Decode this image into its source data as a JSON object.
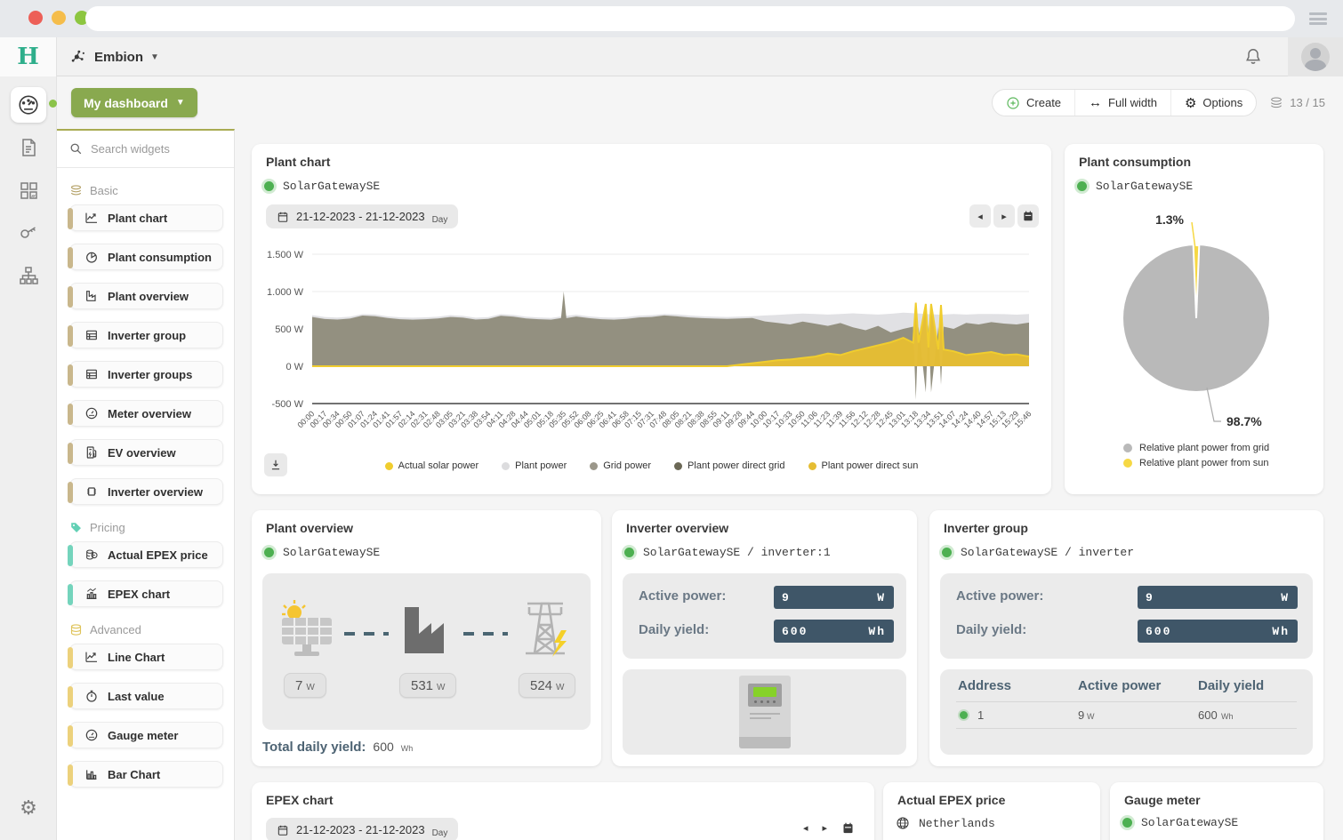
{
  "header": {
    "app_name": "Embion"
  },
  "toolbar": {
    "dashboard_button": "My dashboard",
    "create_label": "Create",
    "full_width_label": "Full width",
    "options_label": "Options",
    "widget_counter": "13 / 15"
  },
  "sidebar": {
    "search_placeholder": "Search widgets",
    "sections": [
      {
        "label": "Basic",
        "items": [
          {
            "label": "Plant chart"
          },
          {
            "label": "Plant consumption"
          },
          {
            "label": "Plant overview"
          },
          {
            "label": "Inverter group"
          },
          {
            "label": "Inverter groups"
          },
          {
            "label": "Meter overview"
          },
          {
            "label": "EV overview"
          },
          {
            "label": "Inverter overview"
          }
        ]
      },
      {
        "label": "Pricing",
        "items": [
          {
            "label": "Actual EPEX price"
          },
          {
            "label": "EPEX chart"
          }
        ]
      },
      {
        "label": "Advanced",
        "items": [
          {
            "label": "Line Chart"
          },
          {
            "label": "Last value"
          },
          {
            "label": "Gauge meter"
          },
          {
            "label": "Bar Chart"
          }
        ]
      }
    ]
  },
  "widgets": {
    "plant_chart": {
      "title": "Plant chart",
      "device": "SolarGatewaySE",
      "date_range": "21-12-2023 - 21-12-2023",
      "date_mode": "Day"
    },
    "plant_consumption": {
      "title": "Plant consumption",
      "device": "SolarGatewaySE"
    },
    "plant_overview": {
      "title": "Plant overview",
      "device": "SolarGatewaySE",
      "solar_value": "7",
      "solar_unit": "W",
      "plant_value": "531",
      "plant_unit": "W",
      "grid_value": "524",
      "grid_unit": "W",
      "total_label": "Total daily yield:",
      "total_value": "600",
      "total_unit": "Wh"
    },
    "inverter_overview": {
      "title": "Inverter overview",
      "device": "SolarGatewaySE / inverter:1",
      "active_power_label": "Active power:",
      "active_power_value": "9",
      "active_power_unit": "W",
      "daily_yield_label": "Daily yield:",
      "daily_yield_value": "600",
      "daily_yield_unit": "Wh"
    },
    "inverter_group": {
      "title": "Inverter group",
      "device": "SolarGatewaySE / inverter",
      "active_power_label": "Active power:",
      "active_power_value": "9",
      "active_power_unit": "W",
      "daily_yield_label": "Daily yield:",
      "daily_yield_value": "600",
      "daily_yield_unit": "Wh",
      "table": {
        "headers": [
          "Address",
          "Active power",
          "Daily yield"
        ],
        "rows": [
          {
            "address": "1",
            "active_power": "9",
            "ap_unit": "W",
            "daily_yield": "600",
            "dy_unit": "Wh"
          }
        ]
      }
    },
    "epex_chart": {
      "title": "EPEX chart",
      "date_range": "21-12-2023 - 21-12-2023",
      "date_mode": "Day"
    },
    "actual_epex_price": {
      "title": "Actual EPEX price",
      "region": "Netherlands"
    },
    "gauge_meter": {
      "title": "Gauge meter",
      "device": "SolarGatewaySE"
    }
  },
  "chart_data": [
    {
      "id": "plant_chart",
      "type": "area",
      "title": "Plant chart",
      "ylim": [
        -500,
        1500
      ],
      "yticks": [
        {
          "v": 1500,
          "label": "1.500 W"
        },
        {
          "v": 1000,
          "label": "1.000 W"
        },
        {
          "v": 500,
          "label": "500 W"
        },
        {
          "v": 0,
          "label": "0 W"
        },
        {
          "v": -500,
          "label": "-500 W"
        }
      ],
      "x": [
        "00:00",
        "00:17",
        "00:34",
        "00:50",
        "01:07",
        "01:24",
        "01:41",
        "01:57",
        "02:14",
        "02:31",
        "02:48",
        "03:05",
        "03:21",
        "03:38",
        "03:54",
        "04:11",
        "04:28",
        "04:44",
        "05:01",
        "05:18",
        "05:35",
        "05:52",
        "06:08",
        "06:25",
        "06:41",
        "06:58",
        "07:15",
        "07:31",
        "07:48",
        "08:05",
        "08:21",
        "08:38",
        "08:55",
        "09:11",
        "09:28",
        "09:44",
        "10:00",
        "10:17",
        "10:33",
        "10:50",
        "11:06",
        "11:23",
        "11:39",
        "11:56",
        "12:12",
        "12:28",
        "12:45",
        "13:01",
        "13:18",
        "13:34",
        "13:51",
        "14:07",
        "14:24",
        "14:40",
        "14:57",
        "15:13",
        "15:29",
        "15:46"
      ],
      "series": [
        {
          "name": "Plant power",
          "draw": "area",
          "color": "#e0e0e3",
          "values": [
            685,
            660,
            652,
            663,
            698,
            693,
            668,
            655,
            650,
            655,
            663,
            684,
            674,
            650,
            658,
            698,
            688,
            664,
            653,
            648,
            672,
            690,
            668,
            655,
            650,
            660,
            678,
            684,
            700,
            694,
            680,
            670,
            664,
            660,
            665,
            670,
            680,
            688,
            698,
            706,
            700,
            692,
            700,
            708,
            700,
            692,
            702,
            718,
            708,
            698,
            690,
            700,
            692,
            700,
            700,
            698,
            690,
            700
          ]
        },
        {
          "name": "Grid power",
          "draw": "area",
          "color": "#918d7c",
          "values": [
            660,
            632,
            625,
            638,
            678,
            670,
            645,
            630,
            624,
            630,
            640,
            660,
            650,
            625,
            634,
            675,
            664,
            640,
            630,
            624,
            1000,
            665,
            644,
            630,
            624,
            634,
            654,
            660,
            680,
            668,
            654,
            644,
            638,
            634,
            640,
            645,
            600,
            580,
            560,
            598,
            570,
            540,
            578,
            520,
            482,
            540,
            452,
            500,
            -450,
            560,
            -250,
            500,
            580,
            560,
            590,
            572,
            560,
            584
          ]
        },
        {
          "name": "Plant power direct sun",
          "draw": "area",
          "color": "#e5bd33",
          "values": [
            0,
            0,
            0,
            0,
            0,
            0,
            0,
            0,
            0,
            0,
            0,
            0,
            0,
            0,
            0,
            0,
            0,
            0,
            0,
            0,
            0,
            0,
            0,
            0,
            0,
            0,
            0,
            0,
            0,
            0,
            0,
            0,
            0,
            0,
            20,
            40,
            60,
            80,
            90,
            110,
            130,
            170,
            150,
            200,
            240,
            280,
            320,
            380,
            850,
            250,
            820,
            200,
            150,
            170,
            190,
            150,
            160,
            130
          ]
        },
        {
          "name": "Actual solar power",
          "draw": "line",
          "color": "#f0cd2e",
          "values": [
            0,
            0,
            0,
            0,
            0,
            0,
            0,
            0,
            0,
            0,
            0,
            0,
            0,
            0,
            0,
            0,
            0,
            0,
            0,
            0,
            0,
            0,
            0,
            0,
            0,
            0,
            0,
            0,
            0,
            0,
            0,
            0,
            0,
            0,
            20,
            40,
            60,
            80,
            90,
            110,
            130,
            170,
            150,
            200,
            240,
            280,
            320,
            380,
            850,
            250,
            820,
            200,
            150,
            170,
            190,
            150,
            160,
            130
          ]
        }
      ],
      "legend": [
        {
          "label": "Actual solar power",
          "color": "#f0cd2e"
        },
        {
          "label": "Plant power",
          "color": "#dcdcde"
        },
        {
          "label": "Grid power",
          "color": "#9b978a"
        },
        {
          "label": "Plant power direct grid",
          "color": "#6b6856"
        },
        {
          "label": "Plant power direct sun",
          "color": "#e5bd33"
        }
      ]
    },
    {
      "id": "plant_consumption",
      "type": "pie",
      "slices": [
        {
          "label": "Relative plant power from grid",
          "value": 98.7,
          "color": "#b9b9b9"
        },
        {
          "label": "Relative plant power from sun",
          "value": 1.3,
          "color": "#f6d844"
        }
      ]
    }
  ]
}
